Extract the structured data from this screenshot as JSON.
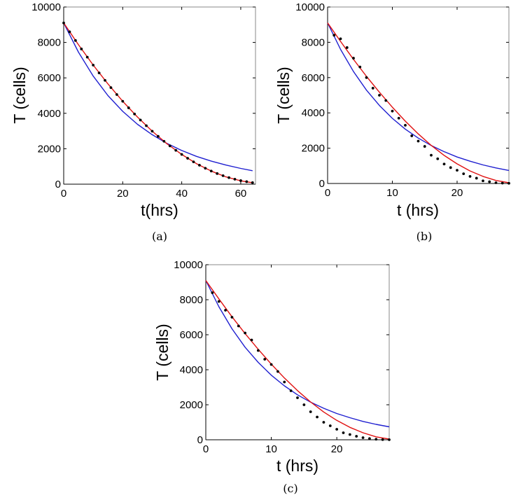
{
  "colors": {
    "blue": "#1f1fd0",
    "red": "#e01010",
    "dots": "#000000",
    "frame": "#000000"
  },
  "chart_data": [
    {
      "id": "a",
      "type": "line",
      "caption": "(a)",
      "xlabel": "t(hrs)",
      "ylabel": "T (cells)",
      "xlim": [
        0,
        65
      ],
      "ylim": [
        0,
        10000
      ],
      "xticks": [
        0,
        20,
        40,
        60
      ],
      "yticks": [
        0,
        2000,
        4000,
        6000,
        8000,
        10000
      ],
      "xtick_labels": [
        "0",
        "20",
        "40",
        "60"
      ],
      "ytick_labels": [
        "0",
        "2000",
        "4000",
        "6000",
        "8000",
        "10000"
      ],
      "series": [
        {
          "name": "data",
          "style": "dots",
          "x": [
            0,
            2,
            4,
            6,
            8,
            10,
            12,
            14,
            16,
            18,
            20,
            22,
            24,
            26,
            28,
            30,
            32,
            34,
            36,
            38,
            40,
            42,
            44,
            46,
            48,
            50,
            52,
            54,
            56,
            58,
            60,
            62,
            64
          ],
          "values": [
            9100,
            8600,
            8110,
            7630,
            7170,
            6720,
            6280,
            5860,
            5450,
            5060,
            4680,
            4310,
            3960,
            3620,
            3300,
            2990,
            2700,
            2420,
            2160,
            1910,
            1680,
            1460,
            1260,
            1070,
            900,
            740,
            600,
            480,
            370,
            280,
            200,
            140,
            90
          ]
        },
        {
          "name": "red fit",
          "x": [
            0,
            5,
            10,
            15,
            20,
            25,
            30,
            35,
            40,
            45,
            50,
            55,
            60,
            64
          ],
          "values": [
            9100,
            7870,
            6720,
            5660,
            4680,
            3790,
            2990,
            2280,
            1680,
            1160,
            740,
            410,
            190,
            80
          ]
        },
        {
          "name": "blue fit",
          "x": [
            0,
            5,
            10,
            15,
            20,
            25,
            30,
            35,
            40,
            45,
            50,
            55,
            60,
            64
          ],
          "values": [
            9100,
            7450,
            6100,
            5000,
            4110,
            3380,
            2790,
            2300,
            1900,
            1570,
            1300,
            1080,
            890,
            760
          ]
        }
      ]
    },
    {
      "id": "b",
      "type": "line",
      "caption": "(b)",
      "xlabel": "t (hrs)",
      "ylabel": "T (cells)",
      "xlim": [
        0,
        28
      ],
      "ylim": [
        0,
        10000
      ],
      "xticks": [
        0,
        10,
        20
      ],
      "yticks": [
        0,
        2000,
        4000,
        6000,
        8000,
        10000
      ],
      "xtick_labels": [
        "0",
        "10",
        "20"
      ],
      "ytick_labels": [
        "0",
        "2000",
        "4000",
        "6000",
        "8000",
        "10000"
      ],
      "series": [
        {
          "name": "data",
          "style": "dots",
          "x": [
            1,
            2,
            3,
            4,
            5,
            6,
            7,
            8,
            9,
            10,
            11,
            12,
            13,
            14,
            15,
            16,
            17,
            18,
            19,
            20,
            21,
            22,
            23,
            24,
            25,
            26,
            27,
            28
          ],
          "values": [
            8400,
            8200,
            7700,
            7100,
            6600,
            6000,
            5400,
            5000,
            4700,
            4100,
            3700,
            3300,
            2700,
            2400,
            2100,
            1600,
            1400,
            1100,
            900,
            750,
            550,
            400,
            300,
            150,
            100,
            40,
            20,
            10
          ]
        },
        {
          "name": "red fit",
          "x": [
            0,
            2,
            4,
            6,
            8,
            10,
            12,
            14,
            16,
            18,
            20,
            22,
            24,
            26,
            28
          ],
          "values": [
            9100,
            8050,
            7030,
            6070,
            5170,
            4320,
            3530,
            2810,
            2160,
            1590,
            1110,
            710,
            400,
            170,
            40
          ]
        },
        {
          "name": "blue fit",
          "x": [
            0,
            2,
            4,
            6,
            8,
            10,
            12,
            14,
            16,
            18,
            20,
            22,
            24,
            26,
            28
          ],
          "values": [
            9100,
            7600,
            6340,
            5290,
            4420,
            3690,
            3080,
            2570,
            2150,
            1800,
            1500,
            1260,
            1050,
            880,
            740
          ]
        }
      ]
    },
    {
      "id": "c",
      "type": "line",
      "caption": "(c)",
      "xlabel": "t (hrs)",
      "ylabel": "T (cells)",
      "xlim": [
        0,
        28
      ],
      "ylim": [
        0,
        10000
      ],
      "xticks": [
        0,
        10,
        20
      ],
      "yticks": [
        0,
        2000,
        4000,
        6000,
        8000,
        10000
      ],
      "xtick_labels": [
        "0",
        "10",
        "20"
      ],
      "ytick_labels": [
        "0",
        "2000",
        "4000",
        "6000",
        "8000",
        "10000"
      ],
      "series": [
        {
          "name": "data",
          "style": "dots",
          "x": [
            1,
            2,
            3,
            4,
            5,
            6,
            7,
            8,
            9,
            10,
            11,
            12,
            13,
            14,
            15,
            16,
            17,
            18,
            19,
            20,
            21,
            22,
            23,
            24,
            25,
            26,
            27,
            28
          ],
          "values": [
            8400,
            7900,
            7400,
            7000,
            6500,
            6100,
            5700,
            5100,
            4600,
            4300,
            3900,
            3300,
            2800,
            2400,
            2000,
            1600,
            1300,
            1000,
            800,
            600,
            400,
            300,
            200,
            120,
            70,
            30,
            10,
            5
          ]
        },
        {
          "name": "red fit",
          "x": [
            0,
            2,
            4,
            6,
            8,
            10,
            12,
            14,
            16,
            18,
            20,
            22,
            24,
            26,
            28
          ],
          "values": [
            9100,
            8050,
            7030,
            6070,
            5170,
            4320,
            3530,
            2810,
            2160,
            1590,
            1110,
            710,
            400,
            170,
            40
          ]
        },
        {
          "name": "blue fit",
          "x": [
            0,
            2,
            4,
            6,
            8,
            10,
            12,
            14,
            16,
            18,
            20,
            22,
            24,
            26,
            28
          ],
          "values": [
            9100,
            7600,
            6340,
            5290,
            4420,
            3690,
            3080,
            2570,
            2150,
            1800,
            1500,
            1260,
            1050,
            880,
            740
          ]
        }
      ]
    }
  ]
}
